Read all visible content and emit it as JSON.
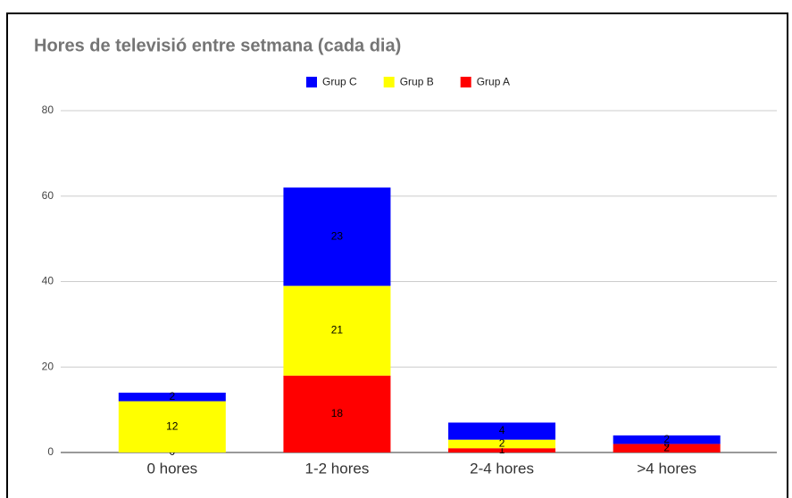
{
  "chart_data": {
    "type": "stacked_bar",
    "title": "Hores de televisió entre setmana (cada dia)",
    "categories": [
      "0 hores",
      "1-2 hores",
      "2-4 hores",
      ">4 hores"
    ],
    "series": [
      {
        "name": "Grup C",
        "color": "#0000ff",
        "values": [
          2,
          23,
          4,
          2
        ]
      },
      {
        "name": "Grup B",
        "color": "#ffff00",
        "values": [
          12,
          21,
          2,
          0
        ]
      },
      {
        "name": "Grup A",
        "color": "#ff0000",
        "values": [
          0,
          18,
          1,
          2
        ]
      }
    ],
    "ylim": [
      0,
      80
    ],
    "yticks": [
      0,
      20,
      40,
      60,
      80
    ],
    "grid": true,
    "legend": "top"
  }
}
